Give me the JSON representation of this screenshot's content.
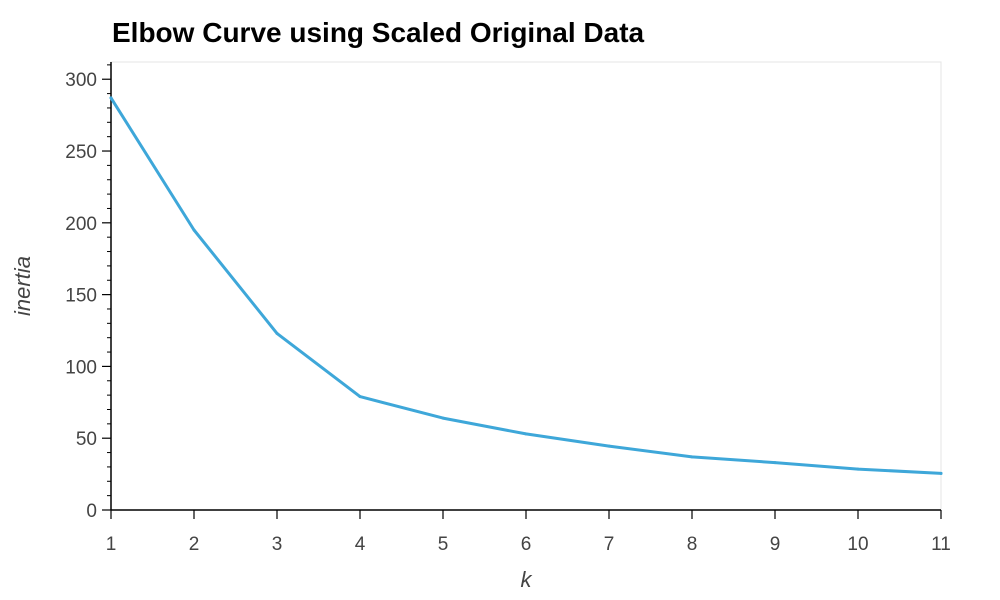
{
  "chart_data": {
    "type": "line",
    "title": "Elbow Curve using Scaled Original Data",
    "xlabel": "k",
    "ylabel": "inertia",
    "x": [
      1,
      2,
      3,
      4,
      5,
      6,
      7,
      8,
      9,
      10,
      11
    ],
    "series": [
      {
        "values": [
          287,
          195,
          123,
          79,
          64,
          53,
          44.5,
          37,
          33,
          28.5,
          25.5
        ]
      }
    ],
    "xlim": [
      1,
      11
    ],
    "ylim": [
      0,
      312
    ],
    "x_ticks": [
      1,
      2,
      3,
      4,
      5,
      6,
      7,
      8,
      9,
      10,
      11
    ],
    "y_ticks": [
      0,
      50,
      100,
      150,
      200,
      250,
      300
    ],
    "grid": false,
    "legend": "none",
    "line_color": "#3ea7d9",
    "axis_color": "#000000",
    "frame_color": "#e5e5e5"
  }
}
